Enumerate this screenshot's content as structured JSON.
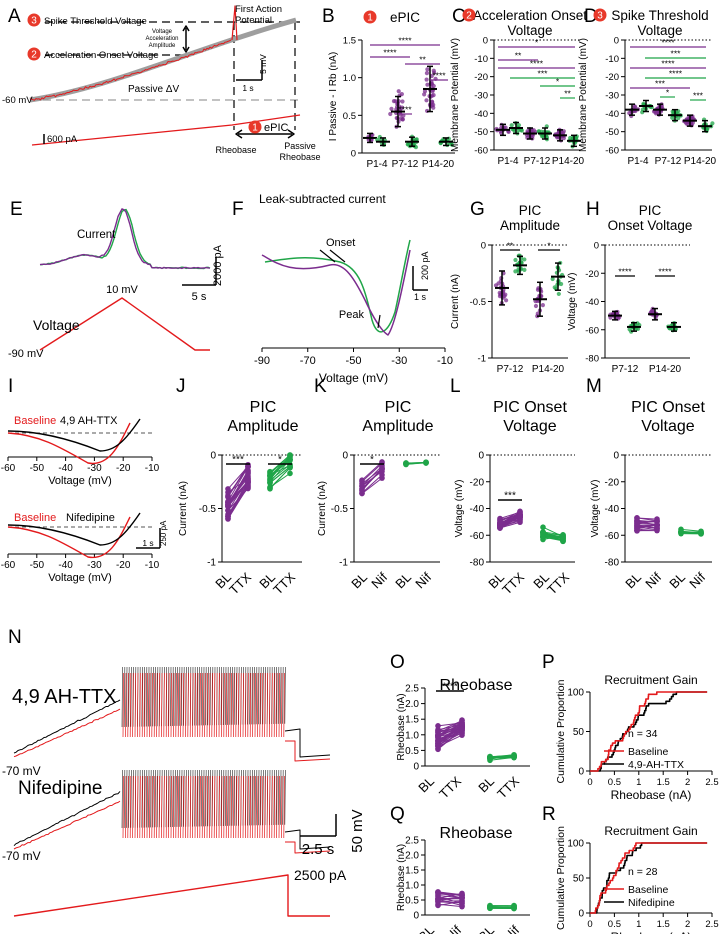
{
  "colors": {
    "purple": "#7b2d8e",
    "green": "#1fa548",
    "red": "#e31a1c",
    "black": "#000000",
    "grey": "#9e9e9e",
    "badge": "#e8392a"
  },
  "panel_letters": [
    "A",
    "B",
    "C",
    "D",
    "E",
    "F",
    "G",
    "H",
    "I",
    "J",
    "K",
    "L",
    "M",
    "N",
    "O",
    "P",
    "Q",
    "R"
  ],
  "panelA": {
    "spike_threshold_label": "Spike Threshold Voltage",
    "accel_onset_label": "Acceleration Onset Voltage",
    "first_ap_label_1": "First Action",
    "first_ap_label_2": "Potential",
    "vaa_1": "Voltage",
    "vaa_2": "Acceleration",
    "vaa_3": "Amplitude",
    "passive_label": "Passive ΔV",
    "vm_label": "-60 mV",
    "current_scale": "600 pA",
    "scale_mv": "5 mV",
    "scale_s": "1 s",
    "epic_label": "ePIC",
    "rheobase_label": "Rheobase",
    "passive_rheobase_1": "Passive",
    "passive_rheobase_2": "Rheobase",
    "badge_1": "1",
    "badge_2": "2",
    "badge_3": "3"
  },
  "chart_data": [
    {
      "id": "B",
      "type": "scatter",
      "title": "ePIC",
      "badge": "1",
      "ylabel": "I Passive - I Rb (nA)",
      "ylim": [
        0,
        1.5
      ],
      "yticks": [
        "0",
        "0.5",
        "1.0",
        "1.5"
      ],
      "categories": [
        "P1-4",
        "P7-12",
        "P14-20"
      ],
      "series": [
        {
          "name": "P1-4 purple",
          "values": [
            0.2
          ]
        },
        {
          "name": "P1-4 green",
          "values": [
            0.15
          ]
        },
        {
          "name": "P7-12 purple",
          "values": [
            0.55
          ]
        },
        {
          "name": "P7-12 green",
          "values": [
            0.15
          ]
        },
        {
          "name": "P14-20 purple",
          "values": [
            0.85
          ]
        },
        {
          "name": "P14-20 green",
          "values": [
            0.15
          ]
        }
      ],
      "sig": [
        "****",
        "****",
        "**",
        "****",
        "****"
      ]
    },
    {
      "id": "C",
      "type": "scatter",
      "title_1": "Acceleration Onset",
      "title_2": "Voltage",
      "badge": "2",
      "ylabel": "Membrane Potential (mV)",
      "ylim": [
        -60,
        0
      ],
      "yticks": [
        "0",
        "-10",
        "-20",
        "-30",
        "-40",
        "-50",
        "-60"
      ],
      "categories": [
        "P1-4",
        "P7-12",
        "P14-20"
      ],
      "series": [
        {
          "name": "P1-4 purple",
          "values": [
            -49
          ]
        },
        {
          "name": "P1-4 green",
          "values": [
            -48
          ]
        },
        {
          "name": "P7-12 purple",
          "values": [
            -51
          ]
        },
        {
          "name": "P7-12 green",
          "values": [
            -51
          ]
        },
        {
          "name": "P14-20 purple",
          "values": [
            -52
          ]
        },
        {
          "name": "P14-20 green",
          "values": [
            -55
          ]
        }
      ],
      "sig": [
        "*",
        "**",
        "****",
        "***",
        "*",
        "**"
      ]
    },
    {
      "id": "D",
      "type": "scatter",
      "title_1": "Spike Threshold",
      "title_2": "Voltage",
      "badge": "3",
      "ylabel": "Membrane Potential (mV)",
      "ylim": [
        -60,
        0
      ],
      "yticks": [
        "0",
        "-10",
        "-20",
        "-30",
        "-40",
        "-50",
        "-60"
      ],
      "categories": [
        "P1-4",
        "P7-12",
        "P14-20"
      ],
      "series": [
        {
          "name": "P1-4 purple",
          "values": [
            -38
          ]
        },
        {
          "name": "P1-4 green",
          "values": [
            -36
          ]
        },
        {
          "name": "P7-12 purple",
          "values": [
            -38
          ]
        },
        {
          "name": "P7-12 green",
          "values": [
            -41
          ]
        },
        {
          "name": "P14-20 purple",
          "values": [
            -44
          ]
        },
        {
          "name": "P14-20 green",
          "values": [
            -47
          ]
        }
      ],
      "sig": [
        "****",
        "***",
        "****",
        "****",
        "***",
        "*",
        "***"
      ]
    },
    {
      "id": "E",
      "type": "line",
      "label_current": "Current",
      "label_voltage": "Voltage",
      "peak_label": "10 mV",
      "start_label": "-90 mV",
      "scale_pa": "2000 pA",
      "scale_s": "5 s"
    },
    {
      "id": "F",
      "type": "line",
      "title": "Leak-subtracted current",
      "xlabel": "Voltage (mV)",
      "xticks": [
        "-90",
        "-70",
        "-50",
        "-30",
        "-10"
      ],
      "xlim": [
        -90,
        -10
      ],
      "onset_label": "Onset",
      "peak_label": "Peak",
      "scale_pa": "200 pA",
      "scale_s": "1 s"
    },
    {
      "id": "G",
      "type": "scatter",
      "title_1": "PIC",
      "title_2": "Amplitude",
      "ylabel": "Current (nA)",
      "ylim": [
        -1,
        0
      ],
      "yticks": [
        "0",
        "-0.5",
        "-1"
      ],
      "categories": [
        "P7-12",
        "P14-20"
      ],
      "series": [
        {
          "name": "purple",
          "values": [
            -0.38,
            -0.48
          ]
        },
        {
          "name": "green",
          "values": [
            -0.18,
            -0.28
          ]
        }
      ],
      "sig": [
        "**",
        "*"
      ]
    },
    {
      "id": "H",
      "type": "scatter",
      "title_1": "PIC",
      "title_2": "Onset Voltage",
      "ylabel": "Voltage (mV)",
      "ylim": [
        -80,
        0
      ],
      "yticks": [
        "0",
        "-20",
        "-40",
        "-60",
        "-80"
      ],
      "categories": [
        "P7-12",
        "P14-20"
      ],
      "series": [
        {
          "name": "purple",
          "values": [
            -50,
            -49
          ]
        },
        {
          "name": "green",
          "values": [
            -58,
            -58
          ]
        }
      ],
      "sig": [
        "****",
        "****"
      ]
    },
    {
      "id": "I",
      "type": "line",
      "baseline_label": "Baseline",
      "drug1_label": "4,9 AH-TTX",
      "drug2_label": "Nifedipine",
      "xlabel": "Voltage (mV)",
      "xticks": [
        "-60",
        "-50",
        "-40",
        "-30",
        "-20",
        "-10"
      ],
      "scale_pa": "250 pA",
      "scale_s": "1 s"
    },
    {
      "id": "J",
      "type": "paired",
      "title_1": "PIC",
      "title_2": "Amplitude",
      "ylabel": "Current (nA)",
      "ylim": [
        -1,
        0
      ],
      "yticks": [
        "0",
        "-0.5",
        "-1"
      ],
      "xticks": [
        "BL",
        "TTX",
        "BL",
        "TTX"
      ],
      "sig": [
        "***",
        "*"
      ]
    },
    {
      "id": "K",
      "type": "paired",
      "title_1": "PIC",
      "title_2": "Amplitude",
      "ylabel": "Current (nA)",
      "ylim": [
        -1,
        0
      ],
      "yticks": [
        "0",
        "-0.5",
        "-1"
      ],
      "xticks": [
        "BL",
        "Nif",
        "BL",
        "Nif"
      ],
      "sig": [
        "*"
      ]
    },
    {
      "id": "L",
      "type": "paired",
      "title_1": "PIC Onset",
      "title_2": "Voltage",
      "ylabel": "Voltage (mV)",
      "ylim": [
        -80,
        0
      ],
      "yticks": [
        "0",
        "-20",
        "-40",
        "-60",
        "-80"
      ],
      "xticks": [
        "BL",
        "TTX",
        "BL",
        "TTX"
      ],
      "sig": [
        "***"
      ]
    },
    {
      "id": "M",
      "type": "paired",
      "title_1": "PIC Onset",
      "title_2": "Voltage",
      "ylabel": "Voltage (mV)",
      "ylim": [
        -80,
        0
      ],
      "yticks": [
        "0",
        "-20",
        "-40",
        "-60",
        "-80"
      ],
      "xticks": [
        "BL",
        "Nif",
        "BL",
        "Nif"
      ],
      "sig": []
    },
    {
      "id": "N",
      "type": "line",
      "drug1_label": "4,9 AH-TTX",
      "drug2_label": "Nifedipine",
      "vm1": "-70 mV",
      "vm2": "-70 mV",
      "scale_mv": "50 mV",
      "scale_s": "2.5 s",
      "ramp_label": "2500 pA"
    },
    {
      "id": "O",
      "type": "paired",
      "title": "Rheobase",
      "ylabel": "Rheobase (nA)",
      "ylim": [
        0,
        2.5
      ],
      "yticks": [
        "0",
        "0.5",
        "1.0",
        "1.5",
        "2.0",
        "2.5"
      ],
      "xticks": [
        "BL",
        "TTX",
        "BL",
        "TTX"
      ],
      "sig": [
        "****"
      ]
    },
    {
      "id": "P",
      "type": "line",
      "title": "Recruitment Gain",
      "ylabel": "Cumulative Proportion",
      "xlabel": "Rheobase (nA)",
      "xticks": [
        "0",
        "0.5",
        "1",
        "1.5",
        "2",
        "2.5"
      ],
      "yticks": [
        "0",
        "50",
        "100"
      ],
      "n_label": "n = 34",
      "legend": [
        "Baseline",
        "4,9-AH-TTX"
      ]
    },
    {
      "id": "Q",
      "type": "paired",
      "title": "Rheobase",
      "ylabel": "Rheobase (nA)",
      "ylim": [
        0,
        2.5
      ],
      "yticks": [
        "0",
        "0.5",
        "1.0",
        "1.5",
        "2.0",
        "2.5"
      ],
      "xticks": [
        "BL",
        "Nif",
        "BL",
        "Nif"
      ],
      "sig": []
    },
    {
      "id": "R",
      "type": "line",
      "title": "Recruitment Gain",
      "ylabel": "Cumulative Proportion",
      "xlabel": "Rheobase (nA)",
      "xticks": [
        "0",
        "0.5",
        "1",
        "1.5",
        "2",
        "2.5"
      ],
      "yticks": [
        "0",
        "50",
        "100"
      ],
      "n_label": "n = 28",
      "legend": [
        "Baseline",
        "Nifedipine"
      ]
    }
  ]
}
